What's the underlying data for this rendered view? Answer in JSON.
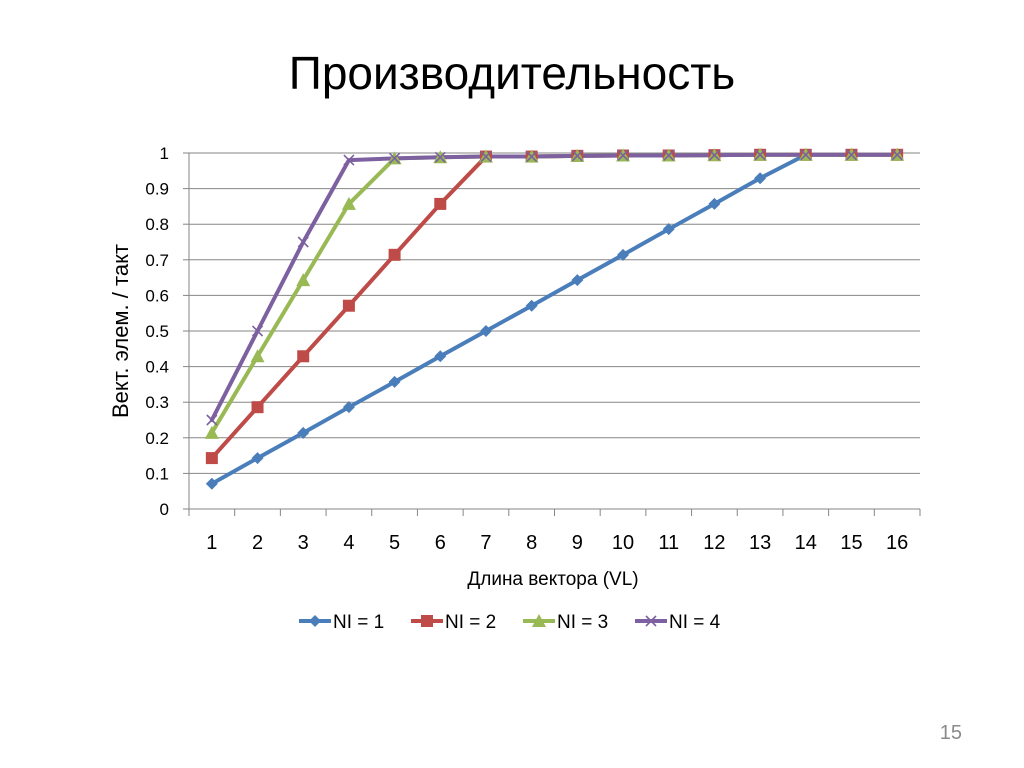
{
  "slide": {
    "title": "Производительность",
    "page_number": "15"
  },
  "colors": {
    "NI = 1": "#4a7ebb",
    "NI = 2": "#be4b48",
    "NI = 3": "#98b954",
    "NI = 4": "#7d60a0"
  },
  "chart_data": {
    "type": "line",
    "title": "",
    "xlabel": "Длина вектора (VL)",
    "ylabel": "Вект. элем. / такт",
    "categories": [
      "1",
      "2",
      "3",
      "4",
      "5",
      "6",
      "7",
      "8",
      "9",
      "10",
      "11",
      "12",
      "13",
      "14",
      "15",
      "16"
    ],
    "ylim": [
      0,
      1
    ],
    "yticks": [
      "0",
      "0.1",
      "0.2",
      "0.3",
      "0.4",
      "0.5",
      "0.6",
      "0.7",
      "0.8",
      "0.9",
      "1"
    ],
    "grid": true,
    "legend_position": "bottom",
    "series": [
      {
        "name": "NI = 1",
        "marker": "diamond",
        "values": [
          0.071,
          0.143,
          0.214,
          0.286,
          0.357,
          0.429,
          0.5,
          0.571,
          0.643,
          0.714,
          0.786,
          0.857,
          0.929,
          0.995,
          0.995,
          0.995
        ]
      },
      {
        "name": "NI = 2",
        "marker": "square",
        "values": [
          0.143,
          0.286,
          0.429,
          0.571,
          0.714,
          0.857,
          0.99,
          0.99,
          0.992,
          0.993,
          0.993,
          0.994,
          0.995,
          0.995,
          0.995,
          0.995
        ]
      },
      {
        "name": "NI = 3",
        "marker": "triangle",
        "values": [
          0.214,
          0.429,
          0.643,
          0.857,
          0.985,
          0.988,
          0.99,
          0.99,
          0.992,
          0.993,
          0.993,
          0.994,
          0.995,
          0.995,
          0.995,
          0.995
        ]
      },
      {
        "name": "NI = 4",
        "marker": "x",
        "values": [
          0.25,
          0.5,
          0.75,
          0.98,
          0.985,
          0.988,
          0.99,
          0.99,
          0.992,
          0.993,
          0.993,
          0.994,
          0.995,
          0.995,
          0.995,
          0.995
        ]
      }
    ]
  }
}
